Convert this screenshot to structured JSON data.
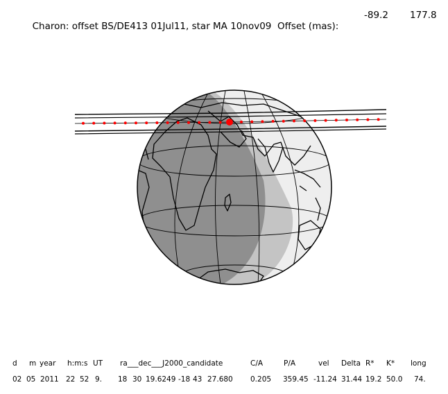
{
  "title": {
    "text": "Charon: offset BS/DE413 01Jul11, star MA 10nov09  Offset (mas):",
    "offset_x": "-89.2",
    "offset_y": "177.8"
  },
  "colors": {
    "night": "#8f8f8f",
    "twilight": "#c4c4c4",
    "day": "#eeeeee",
    "track": "#ff0000",
    "lines": "#000000"
  },
  "table": {
    "headers": [
      "d",
      "m",
      "year",
      "h:m:s",
      "UT",
      "ra___dec___J2000_candidate",
      "C/A",
      "P/A",
      "vel",
      "Delta",
      "R*",
      "K*",
      "long"
    ],
    "values": [
      "02",
      "05",
      "2011",
      "22",
      "52",
      "9.",
      "18",
      "30",
      "19.6249",
      "-18",
      "43",
      "27.680",
      "0.205",
      "359.45",
      "-11.24",
      "31.44",
      "19.2",
      "50.0",
      "74."
    ]
  }
}
